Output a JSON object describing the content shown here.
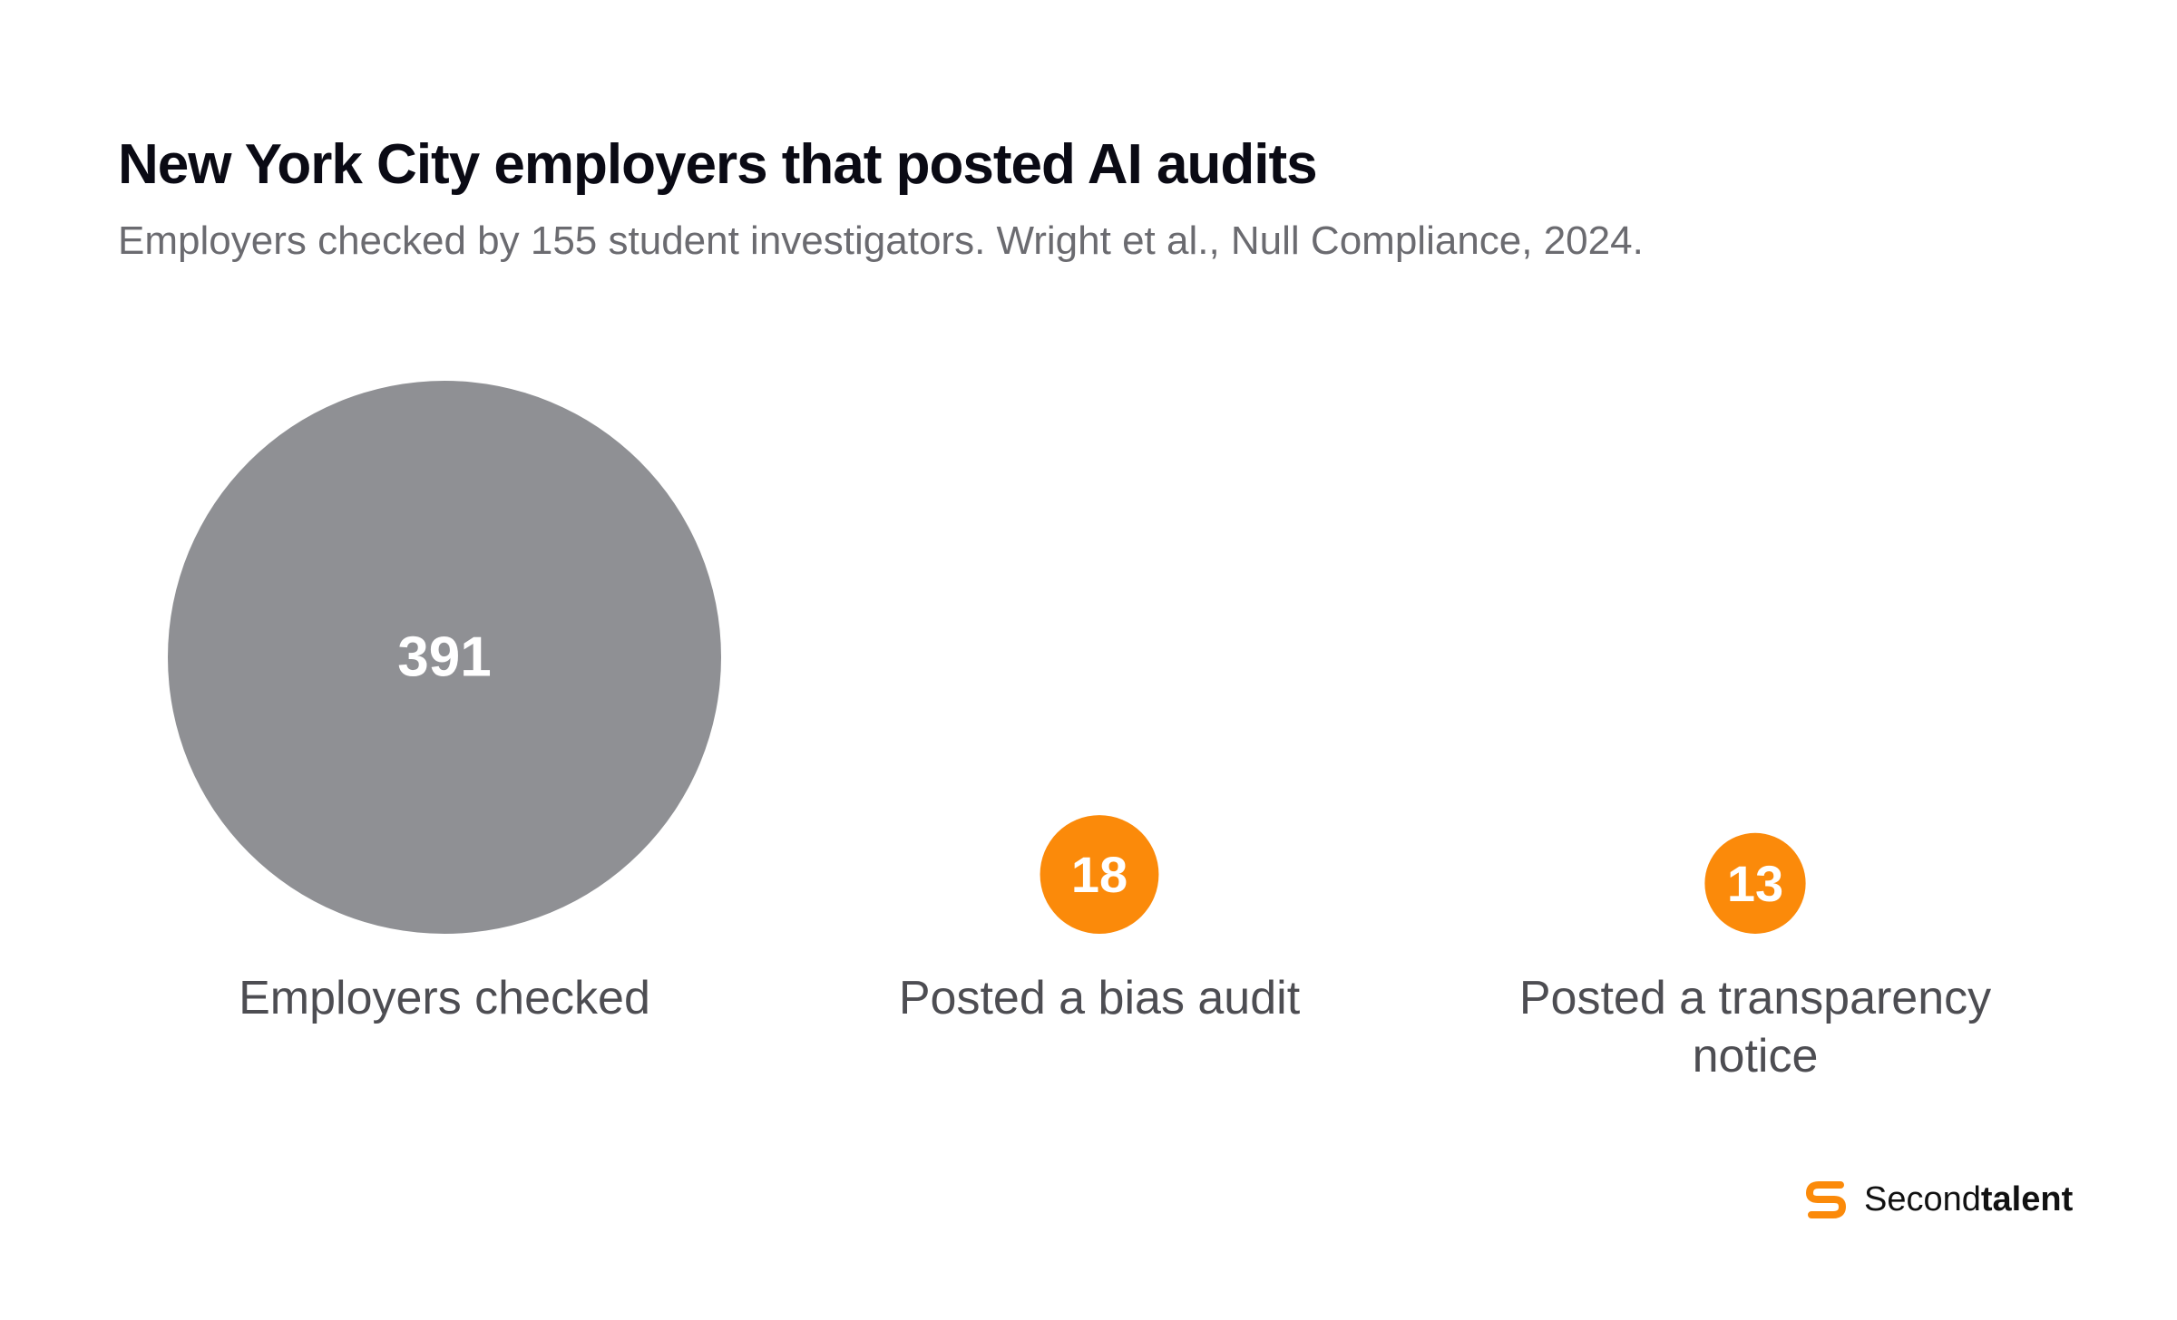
{
  "title": "New York City employers that posted AI audits",
  "subtitle": "Employers checked by 155 student investigators. Wright et al., Null Compliance, 2024.",
  "colors": {
    "total": "#8f9094",
    "highlight": "#fb8a0a",
    "brand": "#fb8a0a"
  },
  "chart_data": {
    "type": "bubble",
    "categories": [
      "Employers checked",
      "Posted a bias audit",
      "Posted a transparency notice"
    ],
    "values": [
      391,
      18,
      13
    ],
    "value_labels": [
      "391",
      "18",
      "13"
    ],
    "category_label_lines": [
      [
        "Employers checked"
      ],
      [
        "Posted a bias audit"
      ],
      [
        "Posted a transparency",
        "notice"
      ]
    ],
    "series_colors": [
      "#8f9094",
      "#fb8a0a",
      "#fb8a0a"
    ],
    "size_encoding": "area"
  },
  "brand": {
    "name_light": "Second",
    "name_bold": "talent",
    "logo_icon": "secondtalent-s-logo-icon"
  }
}
